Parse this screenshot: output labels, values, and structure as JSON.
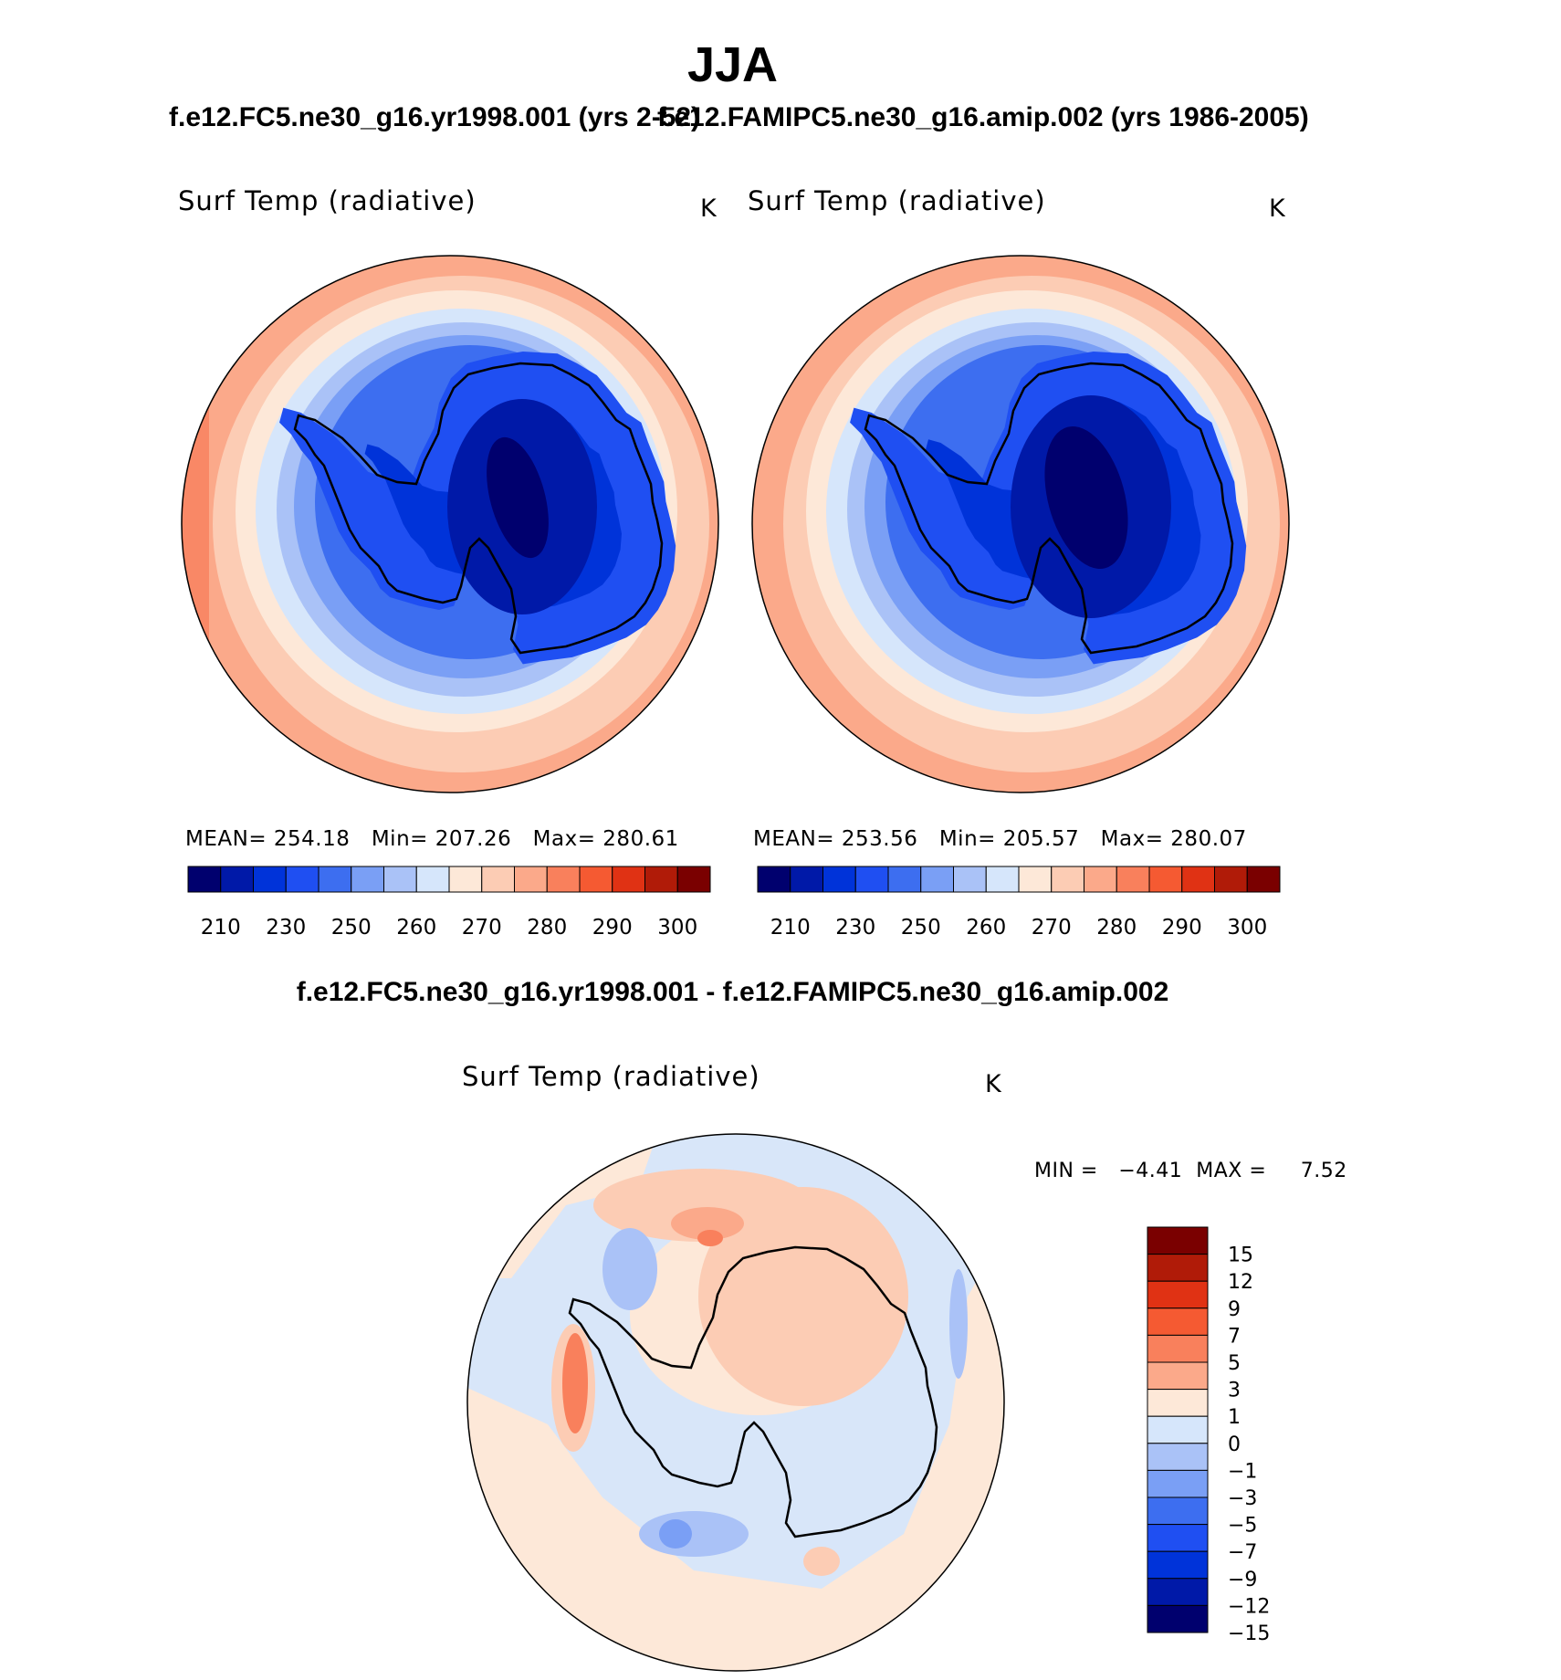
{
  "page": {
    "season": "JJA",
    "case_a_title": "f.e12.FC5.ne30_g16.yr1998.001 (yrs 2-52)",
    "case_b_title": "f.e12.FAMIPC5.ne30_g16.amip.002 (yrs 1986-2005)",
    "diff_title": "f.e12.FC5.ne30_g16.yr1998.001 - f.e12.FAMIPC5.ne30_g16.amip.002"
  },
  "panels": [
    {
      "variable": "Surf Temp (radiative)",
      "units": "K",
      "stats": {
        "mean_label": "MEAN=",
        "mean": "254.18",
        "min_label": "Min=",
        "min": "207.26",
        "max_label": "Max=",
        "max": "280.61"
      }
    },
    {
      "variable": "Surf Temp (radiative)",
      "units": "K",
      "stats": {
        "mean_label": "MEAN=",
        "mean": "253.56",
        "min_label": "Min=",
        "min": "205.57",
        "max_label": "Max=",
        "max": "280.07"
      }
    },
    {
      "variable": "Surf Temp (radiative)",
      "units": "K",
      "stats": {
        "min_label": "MIN =",
        "min": "−4.41",
        "max_label": "MAX =",
        "max": "7.52"
      }
    }
  ],
  "colorbars": {
    "absolute": {
      "colors": [
        "#00006e",
        "#0019a8",
        "#0033d9",
        "#1f4ff2",
        "#3d6ef0",
        "#7a9ff5",
        "#aac2f7",
        "#d6e6fb",
        "#fde8d8",
        "#fcccb4",
        "#fba98a",
        "#f9805c",
        "#f55a32",
        "#e03214",
        "#b01b08",
        "#7a0000"
      ],
      "tick_labels": [
        "210",
        "230",
        "250",
        "260",
        "270",
        "280",
        "290",
        "300"
      ]
    },
    "difference": {
      "colors": [
        "#00006e",
        "#0019a8",
        "#0033d9",
        "#1f4ff2",
        "#3d6ef0",
        "#7a9ff5",
        "#aac2f7",
        "#d6e6fb",
        "#fde8d8",
        "#fba98a",
        "#f9805c",
        "#f55a32",
        "#e03214",
        "#b01b08",
        "#7a0000"
      ],
      "tick_labels": [
        "15",
        "12",
        "9",
        "7",
        "5",
        "3",
        "1",
        "0",
        "−1",
        "−3",
        "−5",
        "−7",
        "−9",
        "−12",
        "−15"
      ]
    }
  }
}
